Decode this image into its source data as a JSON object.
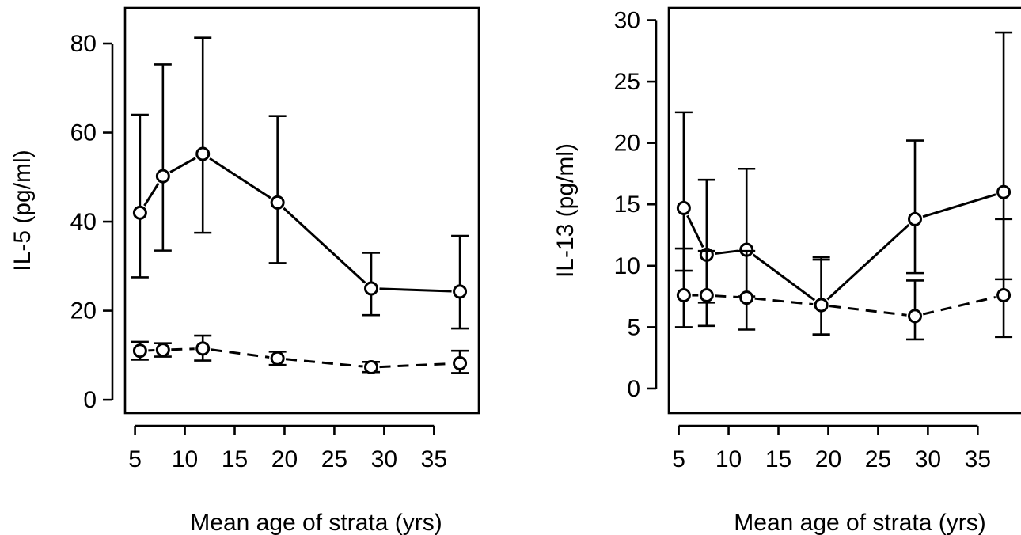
{
  "chart_data": [
    {
      "type": "line",
      "xlabel": "Mean age of strata (yrs)",
      "ylabel": "IL-5 (pg/ml)",
      "xlim": [
        4.0,
        39.5
      ],
      "ylim": [
        -3.0,
        88.0
      ],
      "xticks": [
        5,
        10,
        15,
        20,
        25,
        30,
        35
      ],
      "yticks": [
        0,
        20,
        40,
        60,
        80
      ],
      "grid": false,
      "series": [
        {
          "line_style": "solid",
          "points": [
            {
              "x": 5.5,
              "y": 42.0,
              "lo": 27.5,
              "hi": 64.0
            },
            {
              "x": 7.8,
              "y": 50.2,
              "lo": 33.5,
              "hi": 75.3
            },
            {
              "x": 11.8,
              "y": 55.2,
              "lo": 37.5,
              "hi": 81.3
            },
            {
              "x": 19.3,
              "y": 44.3,
              "lo": 30.7,
              "hi": 63.7
            },
            {
              "x": 28.7,
              "y": 25.0,
              "lo": 19.0,
              "hi": 33.0
            },
            {
              "x": 37.6,
              "y": 24.3,
              "lo": 16.0,
              "hi": 36.8
            }
          ]
        },
        {
          "line_style": "dashed",
          "points": [
            {
              "x": 5.5,
              "y": 11.0,
              "lo": 9.0,
              "hi": 13.0
            },
            {
              "x": 7.8,
              "y": 11.2,
              "lo": 9.7,
              "hi": 12.7
            },
            {
              "x": 11.8,
              "y": 11.5,
              "lo": 8.8,
              "hi": 14.4
            },
            {
              "x": 19.3,
              "y": 9.3,
              "lo": 7.8,
              "hi": 10.8
            },
            {
              "x": 28.7,
              "y": 7.3,
              "lo": 6.2,
              "hi": 8.5
            },
            {
              "x": 37.6,
              "y": 8.2,
              "lo": 6.0,
              "hi": 11.0
            }
          ]
        }
      ]
    },
    {
      "type": "line",
      "xlabel": "Mean age of strata (yrs)",
      "ylabel": "IL-13 (pg/ml)",
      "xlim": [
        4.0,
        39.5
      ],
      "ylim": [
        -2.0,
        31.0
      ],
      "xticks": [
        5,
        10,
        15,
        20,
        25,
        30,
        35
      ],
      "yticks": [
        0,
        5,
        10,
        15,
        20,
        25,
        30
      ],
      "grid": false,
      "series": [
        {
          "line_style": "solid",
          "points": [
            {
              "x": 5.5,
              "y": 14.7,
              "lo": 9.6,
              "hi": 22.5
            },
            {
              "x": 7.8,
              "y": 10.9,
              "lo": 7.0,
              "hi": 17.0
            },
            {
              "x": 11.8,
              "y": 11.3,
              "lo": 7.5,
              "hi": 17.9
            },
            {
              "x": 19.3,
              "y": 6.8,
              "lo": 4.4,
              "hi": 10.5
            },
            {
              "x": 28.7,
              "y": 13.8,
              "lo": 9.4,
              "hi": 20.2
            },
            {
              "x": 37.6,
              "y": 16.0,
              "lo": 8.9,
              "hi": 29.0
            }
          ]
        },
        {
          "line_style": "dashed",
          "points": [
            {
              "x": 5.5,
              "y": 7.6,
              "lo": 5.0,
              "hi": 11.4
            },
            {
              "x": 7.8,
              "y": 7.6,
              "lo": 5.1,
              "hi": 11.2
            },
            {
              "x": 11.8,
              "y": 7.4,
              "lo": 4.8,
              "hi": 11.2
            },
            {
              "x": 19.3,
              "y": 6.8,
              "lo": 4.4,
              "hi": 10.7
            },
            {
              "x": 28.7,
              "y": 5.9,
              "lo": 4.0,
              "hi": 8.8
            },
            {
              "x": 37.6,
              "y": 7.6,
              "lo": 4.2,
              "hi": 13.8
            }
          ]
        }
      ]
    }
  ]
}
